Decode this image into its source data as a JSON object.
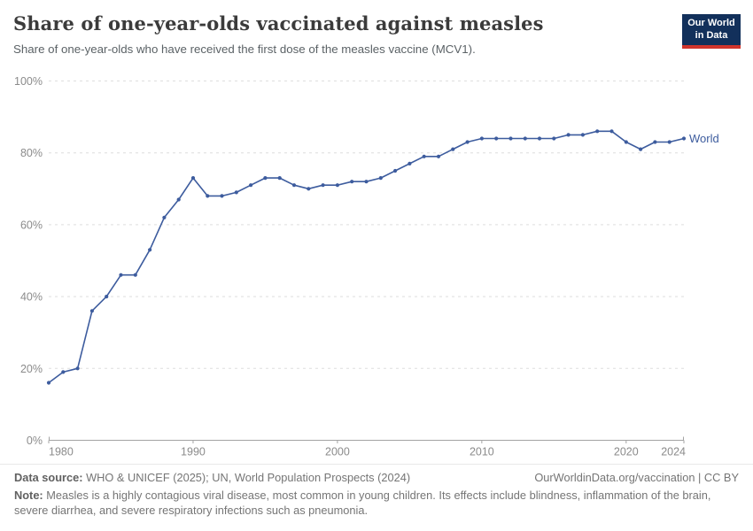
{
  "header": {
    "title": "Share of one-year-olds vaccinated against measles",
    "subtitle": "Share of one-year-olds who have received the first dose of the measles vaccine (MCV1)."
  },
  "logo": {
    "line1": "Our World",
    "line2": "in Data",
    "bg_color": "#12305b",
    "stripe_color": "#d0342c"
  },
  "chart_data": {
    "type": "line",
    "title": "Share of one-year-olds vaccinated against measles",
    "xlabel": "",
    "ylabel": "",
    "xlim": [
      1980,
      2024
    ],
    "ylim": [
      0,
      100
    ],
    "xticks": [
      1980,
      1990,
      2000,
      2010,
      2020,
      2024
    ],
    "yticks": [
      0,
      20,
      40,
      60,
      80,
      100
    ],
    "ytick_suffix": "%",
    "grid": "horizontal-dashed",
    "legend_position": "end-of-line",
    "x": [
      1980,
      1981,
      1982,
      1983,
      1984,
      1985,
      1986,
      1987,
      1988,
      1989,
      1990,
      1991,
      1992,
      1993,
      1994,
      1995,
      1996,
      1997,
      1998,
      1999,
      2000,
      2001,
      2002,
      2003,
      2004,
      2005,
      2006,
      2007,
      2008,
      2009,
      2010,
      2011,
      2012,
      2013,
      2014,
      2015,
      2016,
      2017,
      2018,
      2019,
      2020,
      2021,
      2022,
      2023,
      2024
    ],
    "series": [
      {
        "name": "World",
        "color": "#3d5c9e",
        "values": [
          16,
          19,
          20,
          36,
          40,
          46,
          46,
          53,
          62,
          67,
          73,
          68,
          68,
          69,
          71,
          73,
          73,
          71,
          70,
          71,
          71,
          72,
          72,
          73,
          75,
          77,
          79,
          79,
          81,
          83,
          84,
          84,
          84,
          84,
          84,
          84,
          85,
          85,
          86,
          86,
          83,
          81,
          83,
          83,
          84
        ]
      }
    ]
  },
  "colors": {
    "line": "#3d5c9e",
    "grid": "#dedede",
    "axis": "#a3a3a3",
    "tick_text": "#8b8b8b",
    "title_text": "#3b3b3b",
    "subtitle_text": "#5b6266",
    "footer_text": "#757575"
  },
  "footer": {
    "data_source_label": "Data source:",
    "data_source_text": " WHO & UNICEF (2025); UN, World Population Prospects (2024)",
    "credit": "OurWorldinData.org/vaccination | CC BY",
    "note_label": "Note:",
    "note_text": " Measles is a highly contagious viral disease, most common in young children. Its effects include blindness, inflammation of the brain, severe diarrhea, and severe respiratory infections such as pneumonia."
  }
}
